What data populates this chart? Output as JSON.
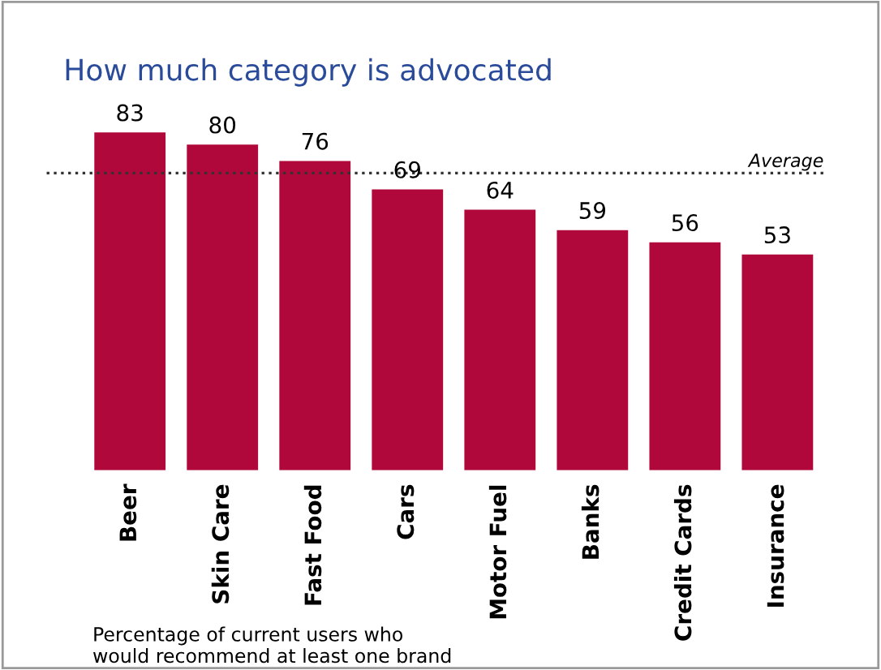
{
  "chart_data": {
    "type": "bar",
    "title": "How much category is advocated",
    "categories": [
      "Beer",
      "Skin Care",
      "Fast Food",
      "Cars",
      "Motor Fuel",
      "Banks",
      "Credit Cards",
      "Insurance"
    ],
    "values": [
      83,
      80,
      76,
      69,
      64,
      59,
      56,
      53
    ],
    "color": "#b0083a",
    "data_labels": true,
    "ref_lines": [
      {
        "axis": "y",
        "value": 73,
        "label": "Average",
        "line_style": "dotted",
        "color": "#333333"
      }
    ],
    "annotations": [
      "Percentage of current users who\nwould recommend at least one brand"
    ],
    "grid": false,
    "legend": false
  }
}
